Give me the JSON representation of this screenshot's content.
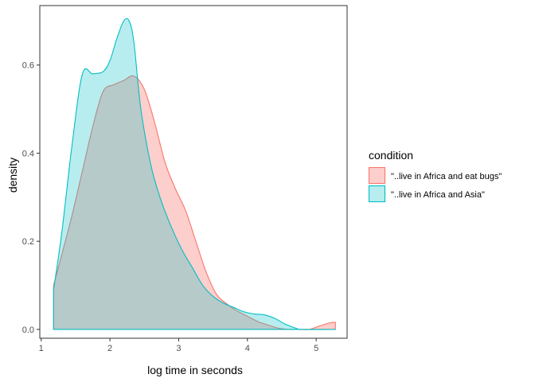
{
  "chart_data": {
    "type": "area",
    "xlabel": "log time in seconds",
    "ylabel": "density",
    "xlim": [
      0.98,
      5.45
    ],
    "ylim": [
      -0.02,
      0.735
    ],
    "x_ticks": [
      1,
      2,
      3,
      4,
      5
    ],
    "x_tick_labels": [
      "1",
      "2",
      "3",
      "4",
      "5"
    ],
    "y_ticks": [
      0.0,
      0.2,
      0.4,
      0.6
    ],
    "y_tick_labels": [
      "0.0",
      "0.2",
      "0.4",
      "0.6"
    ],
    "grid": false,
    "legend": {
      "title": "condition",
      "position": "right"
    },
    "series": [
      {
        "name": "\"..live in Africa and eat bugs\"",
        "color": "#F8766D",
        "fill": "#F8766D",
        "fill_opacity": 0.35,
        "x": [
          1.18,
          1.3,
          1.45,
          1.6,
          1.75,
          1.9,
          2.05,
          2.2,
          2.35,
          2.5,
          2.65,
          2.8,
          2.95,
          3.1,
          3.25,
          3.4,
          3.55,
          3.7,
          3.85,
          4.0,
          4.15,
          4.3,
          4.45,
          4.6,
          4.75,
          4.9,
          5.05,
          5.2,
          5.28
        ],
        "y": [
          0.1,
          0.17,
          0.26,
          0.36,
          0.46,
          0.54,
          0.555,
          0.565,
          0.575,
          0.545,
          0.47,
          0.38,
          0.32,
          0.27,
          0.2,
          0.13,
          0.08,
          0.058,
          0.042,
          0.03,
          0.018,
          0.01,
          0.003,
          0.0,
          0.0,
          0.0,
          0.008,
          0.015,
          0.016
        ]
      },
      {
        "name": "\"..live in Africa and Asia\"",
        "color": "#00BFC4",
        "fill": "#00BFC4",
        "fill_opacity": 0.28,
        "x": [
          1.18,
          1.3,
          1.45,
          1.6,
          1.75,
          1.9,
          2.0,
          2.1,
          2.2,
          2.28,
          2.35,
          2.45,
          2.6,
          2.75,
          2.9,
          3.05,
          3.2,
          3.35,
          3.5,
          3.65,
          3.8,
          3.95,
          4.1,
          4.25,
          4.4,
          4.55,
          4.7,
          4.8,
          5.28
        ],
        "y": [
          0.09,
          0.22,
          0.42,
          0.58,
          0.58,
          0.585,
          0.61,
          0.66,
          0.7,
          0.7,
          0.65,
          0.5,
          0.37,
          0.29,
          0.23,
          0.18,
          0.14,
          0.1,
          0.075,
          0.06,
          0.05,
          0.04,
          0.035,
          0.033,
          0.025,
          0.012,
          0.003,
          0.0,
          0.0
        ]
      }
    ]
  }
}
